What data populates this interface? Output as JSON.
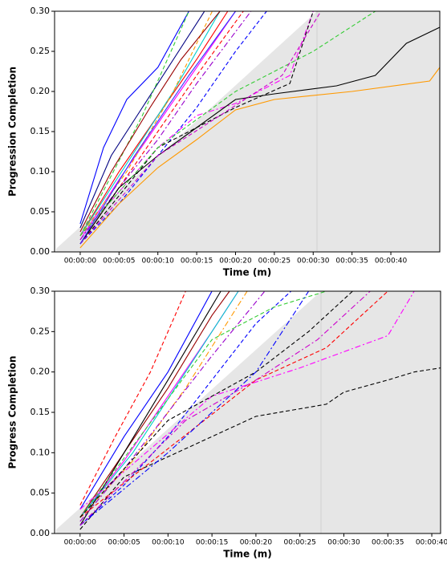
{
  "chart_data": [
    {
      "type": "line",
      "x_label": "Time (m)",
      "y_label": "Progression Completion",
      "xlim": [
        -3.3,
        46.3
      ],
      "ylim": [
        0,
        0.3
      ],
      "xticks": [
        {
          "value": 0,
          "label": "00:00:00"
        },
        {
          "value": 5,
          "label": "00:00:05"
        },
        {
          "value": 10,
          "label": "00:00:10"
        },
        {
          "value": 15,
          "label": "00:00:15"
        },
        {
          "value": 20,
          "label": "00:00:20"
        },
        {
          "value": 25,
          "label": "00:00:25"
        },
        {
          "value": 30,
          "label": "00:00:30"
        },
        {
          "value": 35,
          "label": "00:00:35"
        },
        {
          "value": 40,
          "label": "00:00:40"
        }
      ],
      "yticks": [
        {
          "value": 0,
          "label": "0.00"
        },
        {
          "value": 0.05,
          "label": "0.05"
        },
        {
          "value": 0.1,
          "label": "0.10"
        },
        {
          "value": 0.15,
          "label": "0.15"
        },
        {
          "value": 0.2,
          "label": "0.20"
        },
        {
          "value": 0.25,
          "label": "0.25"
        },
        {
          "value": 0.3,
          "label": "0.30"
        }
      ],
      "series": [
        {
          "color": "#0000ff",
          "dash": "solid",
          "x": [
            0,
            3,
            6,
            10,
            14
          ],
          "values": [
            0.035,
            0.13,
            0.19,
            0.23,
            0.3
          ]
        },
        {
          "color": "#000080",
          "dash": "solid",
          "x": [
            0,
            4,
            8,
            12,
            16
          ],
          "values": [
            0.03,
            0.12,
            0.18,
            0.24,
            0.3
          ]
        },
        {
          "color": "#ff0000",
          "dash": "solid",
          "x": [
            0,
            5,
            10,
            15,
            19
          ],
          "values": [
            0.02,
            0.1,
            0.17,
            0.24,
            0.3
          ]
        },
        {
          "color": "#ff00ff",
          "dash": "solid",
          "x": [
            0,
            5,
            10,
            15,
            20
          ],
          "values": [
            0.015,
            0.09,
            0.16,
            0.23,
            0.3
          ]
        },
        {
          "color": "#ff0000",
          "dash": "dashed",
          "x": [
            0,
            5,
            10,
            15,
            21
          ],
          "values": [
            0.01,
            0.08,
            0.15,
            0.22,
            0.3
          ]
        },
        {
          "color": "#0000ff",
          "dash": "dashed",
          "x": [
            0,
            5,
            10,
            15,
            20,
            24
          ],
          "values": [
            0.01,
            0.06,
            0.12,
            0.18,
            0.25,
            0.3
          ]
        },
        {
          "color": "#33cc33",
          "dash": "dashed",
          "x": [
            0,
            8,
            14
          ],
          "values": [
            0.02,
            0.17,
            0.3
          ]
        },
        {
          "color": "#00cccc",
          "dash": "solid",
          "x": [
            0,
            6,
            12,
            18
          ],
          "values": [
            0.02,
            0.11,
            0.2,
            0.3
          ]
        },
        {
          "color": "#9900cc",
          "dash": "dashdot",
          "x": [
            0,
            5,
            10,
            15,
            22
          ],
          "values": [
            0.015,
            0.08,
            0.14,
            0.21,
            0.3
          ]
        },
        {
          "color": "#ff9900",
          "dash": "dashed",
          "x": [
            0,
            6,
            12,
            17
          ],
          "values": [
            0.02,
            0.1,
            0.2,
            0.3
          ]
        },
        {
          "color": "#990000",
          "dash": "solid",
          "x": [
            0,
            4,
            9,
            13,
            18
          ],
          "values": [
            0.025,
            0.1,
            0.18,
            0.24,
            0.3
          ]
        },
        {
          "color": "#ff00ff",
          "dash": "dashdot",
          "x": [
            0,
            10,
            15,
            20,
            27,
            30
          ],
          "values": [
            0.02,
            0.13,
            0.17,
            0.185,
            0.22,
            0.3
          ]
        },
        {
          "color": "#000000",
          "dash": "dashed",
          "x": [
            0,
            10,
            20,
            27,
            30
          ],
          "values": [
            0.01,
            0.13,
            0.18,
            0.21,
            0.3
          ]
        },
        {
          "color": "#000000",
          "dash": "solid",
          "x": [
            0,
            5,
            10,
            15,
            20,
            25,
            33,
            38,
            42,
            46.3
          ],
          "values": [
            0.01,
            0.08,
            0.12,
            0.155,
            0.19,
            0.197,
            0.207,
            0.22,
            0.26,
            0.28
          ]
        },
        {
          "color": "#ff9900",
          "dash": "solid",
          "x": [
            0,
            5,
            10,
            15,
            20,
            25,
            35,
            45,
            46.3
          ],
          "values": [
            0.005,
            0.06,
            0.105,
            0.14,
            0.177,
            0.19,
            0.2,
            0.213,
            0.23
          ]
        },
        {
          "color": "#33cc33",
          "dash": "dashed",
          "x": [
            0,
            10,
            20,
            30,
            38
          ],
          "values": [
            0.02,
            0.13,
            0.2,
            0.25,
            0.3
          ]
        },
        {
          "color": "#cc00cc",
          "dash": "dashed",
          "x": [
            0,
            10,
            18,
            26,
            31
          ],
          "values": [
            0.01,
            0.12,
            0.17,
            0.22,
            0.3
          ]
        },
        {
          "color": "#3333ff",
          "dash": "solid",
          "x": [
            0,
            7,
            14,
            20
          ],
          "values": [
            0.01,
            0.12,
            0.22,
            0.3
          ]
        }
      ]
    },
    {
      "type": "line",
      "x_label": "Time (m)",
      "y_label": "Progress Completion",
      "xlim": [
        -2.9,
        41
      ],
      "ylim": [
        0,
        0.3
      ],
      "xticks": [
        {
          "value": 0,
          "label": "00:00:00"
        },
        {
          "value": 5,
          "label": "00:00:05"
        },
        {
          "value": 10,
          "label": "00:00:10"
        },
        {
          "value": 15,
          "label": "00:00:15"
        },
        {
          "value": 20,
          "label": "00:00:20"
        },
        {
          "value": 25,
          "label": "00:00:25"
        },
        {
          "value": 30,
          "label": "00:00:30"
        },
        {
          "value": 35,
          "label": "00:00:35"
        },
        {
          "value": 40,
          "label": "00:00:40"
        }
      ],
      "yticks": [
        {
          "value": 0,
          "label": "0.00"
        },
        {
          "value": 0.05,
          "label": "0.05"
        },
        {
          "value": 0.1,
          "label": "0.10"
        },
        {
          "value": 0.15,
          "label": "0.15"
        },
        {
          "value": 0.2,
          "label": "0.20"
        },
        {
          "value": 0.25,
          "label": "0.25"
        },
        {
          "value": 0.3,
          "label": "0.30"
        }
      ],
      "series": [
        {
          "color": "#ff0000",
          "dash": "dashed",
          "x": [
            0,
            4,
            8,
            12
          ],
          "values": [
            0.035,
            0.12,
            0.2,
            0.3
          ]
        },
        {
          "color": "#0000ff",
          "dash": "solid",
          "x": [
            0,
            5,
            10,
            15
          ],
          "values": [
            0.03,
            0.12,
            0.2,
            0.3
          ]
        },
        {
          "color": "#990000",
          "dash": "solid",
          "x": [
            0,
            5,
            10,
            15,
            17
          ],
          "values": [
            0.02,
            0.1,
            0.18,
            0.27,
            0.3
          ]
        },
        {
          "color": "#ff00ff",
          "dash": "solid",
          "x": [
            0,
            5,
            10,
            15,
            18
          ],
          "values": [
            0.02,
            0.09,
            0.17,
            0.25,
            0.3
          ]
        },
        {
          "color": "#000000",
          "dash": "solid",
          "x": [
            0,
            5,
            10,
            16
          ],
          "values": [
            0.01,
            0.1,
            0.19,
            0.3
          ]
        },
        {
          "color": "#0000ff",
          "dash": "dashed",
          "x": [
            0,
            5,
            10,
            15,
            20,
            24
          ],
          "values": [
            0.01,
            0.06,
            0.12,
            0.19,
            0.26,
            0.3
          ]
        },
        {
          "color": "#ff9900",
          "dash": "dashdot",
          "x": [
            0,
            6,
            12,
            19
          ],
          "values": [
            0.02,
            0.09,
            0.18,
            0.3
          ]
        },
        {
          "color": "#9900cc",
          "dash": "dashdot",
          "x": [
            0,
            5,
            10,
            15,
            21
          ],
          "values": [
            0.015,
            0.08,
            0.15,
            0.22,
            0.3
          ]
        },
        {
          "color": "#00cccc",
          "dash": "solid",
          "x": [
            0,
            6,
            12,
            18
          ],
          "values": [
            0.02,
            0.1,
            0.2,
            0.3
          ]
        },
        {
          "color": "#33cc33",
          "dash": "dashed",
          "x": [
            0,
            15,
            22,
            28
          ],
          "values": [
            0.02,
            0.24,
            0.28,
            0.3
          ]
        },
        {
          "color": "#000000",
          "dash": "dashed",
          "x": [
            0,
            5,
            10,
            15,
            20,
            28,
            30,
            35,
            38,
            41
          ],
          "values": [
            0.005,
            0.07,
            0.095,
            0.12,
            0.145,
            0.16,
            0.175,
            0.19,
            0.2,
            0.205
          ]
        },
        {
          "color": "#ff00ff",
          "dash": "dashdot",
          "x": [
            0,
            15,
            25,
            30,
            35,
            38
          ],
          "values": [
            0.03,
            0.17,
            0.205,
            0.225,
            0.245,
            0.3
          ]
        },
        {
          "color": "#ff0000",
          "dash": "dashed",
          "x": [
            0,
            20,
            28,
            32,
            35
          ],
          "values": [
            0.02,
            0.19,
            0.23,
            0.27,
            0.3
          ]
        },
        {
          "color": "#000000",
          "dash": "dashed",
          "x": [
            0,
            10,
            20,
            26,
            31
          ],
          "values": [
            0.02,
            0.14,
            0.2,
            0.25,
            0.3
          ]
        },
        {
          "color": "#0000ff",
          "dash": "dashdot",
          "x": [
            0,
            10,
            20,
            26
          ],
          "values": [
            0.01,
            0.1,
            0.2,
            0.3
          ]
        },
        {
          "color": "#cc00cc",
          "dash": "dashdot",
          "x": [
            0,
            12,
            20,
            27,
            33
          ],
          "values": [
            0.01,
            0.14,
            0.19,
            0.24,
            0.3
          ]
        }
      ]
    }
  ]
}
